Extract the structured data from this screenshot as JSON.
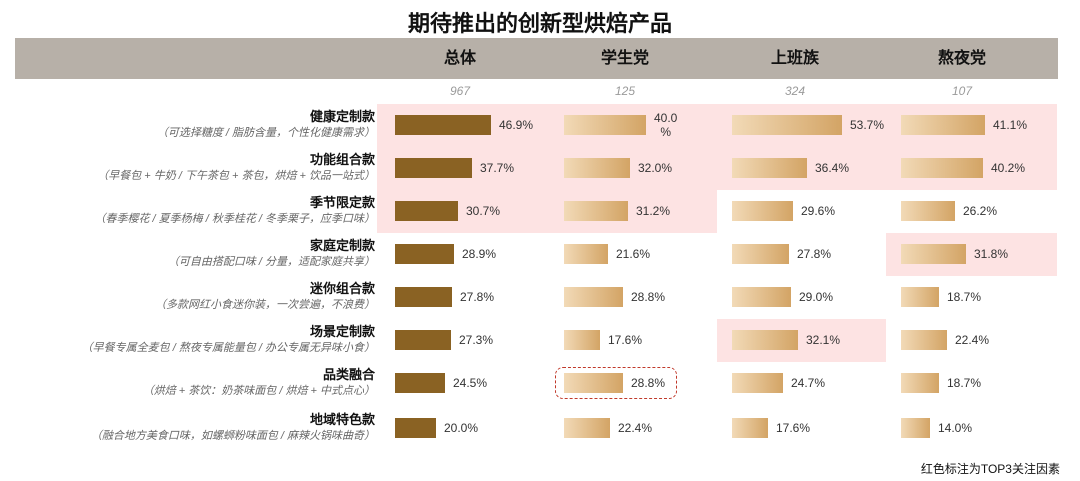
{
  "title": "期待推出的创新型烘焙产品",
  "footnote": "红色标注为TOP3关注因素",
  "chart_data": {
    "type": "bar",
    "title": "期待推出的创新型烘焙产品",
    "groups": [
      {
        "name": "总体",
        "n": "967"
      },
      {
        "name": "学生党",
        "n": "125"
      },
      {
        "name": "上班族",
        "n": "324"
      },
      {
        "name": "熬夜党",
        "n": "107"
      }
    ],
    "categories": [
      {
        "name": "健康定制款",
        "desc": "（可选择糖度 / 脂肪含量，个性化健康需求）"
      },
      {
        "name": "功能组合款",
        "desc": "（早餐包 + 牛奶 / 下午茶包 + 茶包，烘焙 + 饮品一站式）"
      },
      {
        "name": "季节限定款",
        "desc": "（春季樱花 / 夏季杨梅 / 秋季桂花 / 冬季栗子，应季口味）"
      },
      {
        "name": "家庭定制款",
        "desc": "（可自由搭配口味 / 分量，适配家庭共享）"
      },
      {
        "name": "迷你组合款",
        "desc": "（多款网红小食迷你装，一次尝遍，不浪费）"
      },
      {
        "name": "场景定制款",
        "desc": "（早餐专属全麦包 / 熬夜专属能量包 / 办公专属无异味小食）"
      },
      {
        "name": "品类融合",
        "desc": "（烘焙 + 茶饮：奶茶味面包 / 烘焙 + 中式点心）"
      },
      {
        "name": "地域特色款",
        "desc": "（融合地方美食口味，如螺蛳粉味面包 / 麻辣火锅味曲奇）"
      }
    ],
    "series": [
      {
        "name": "总体",
        "values": [
          46.9,
          37.7,
          30.7,
          28.9,
          27.8,
          27.3,
          24.5,
          20.0
        ]
      },
      {
        "name": "学生党",
        "values": [
          40.0,
          32.0,
          31.2,
          21.6,
          28.8,
          17.6,
          28.8,
          22.4
        ]
      },
      {
        "name": "上班族",
        "values": [
          53.7,
          36.4,
          29.6,
          27.8,
          29.0,
          32.1,
          24.7,
          17.6
        ]
      },
      {
        "name": "熬夜党",
        "values": [
          41.1,
          40.2,
          26.2,
          31.8,
          18.7,
          22.4,
          18.7,
          14.0
        ]
      }
    ],
    "value_labels": [
      [
        "46.9%",
        "37.7%",
        "30.7%",
        "28.9%",
        "27.8%",
        "27.3%",
        "24.5%",
        "20.0%"
      ],
      [
        "40.0\n%",
        "32.0%",
        "31.2%",
        "21.6%",
        "28.8%",
        "17.6%",
        "28.8%",
        "22.4%"
      ],
      [
        "53.7%",
        "36.4%",
        "29.6%",
        "27.8%",
        "29.0%",
        "32.1%",
        "24.7%",
        "17.6%"
      ],
      [
        "41.1%",
        "40.2%",
        "26.2%",
        "31.8%",
        "18.7%",
        "22.4%",
        "18.7%",
        "14.0%"
      ]
    ],
    "unit": "%",
    "top3_highlighted": {
      "总体": [
        "健康定制款",
        "功能组合款",
        "季节限定款"
      ],
      "学生党": [
        "健康定制款",
        "功能组合款",
        "季节限定款"
      ],
      "上班族": [
        "健康定制款",
        "功能组合款",
        "场景定制款"
      ],
      "熬夜党": [
        "健康定制款",
        "功能组合款",
        "家庭定制款"
      ]
    },
    "dashed_highlight": {
      "group": "学生党",
      "category": "品类融合"
    },
    "colors": {
      "overall_bar": "#8a6223",
      "segment_bar_start": "#f2dab7",
      "segment_bar_end": "#d3a465",
      "highlight": "#fde3e3",
      "header_band": "#b7b0a8",
      "dashed_border": "#c0392b"
    }
  }
}
